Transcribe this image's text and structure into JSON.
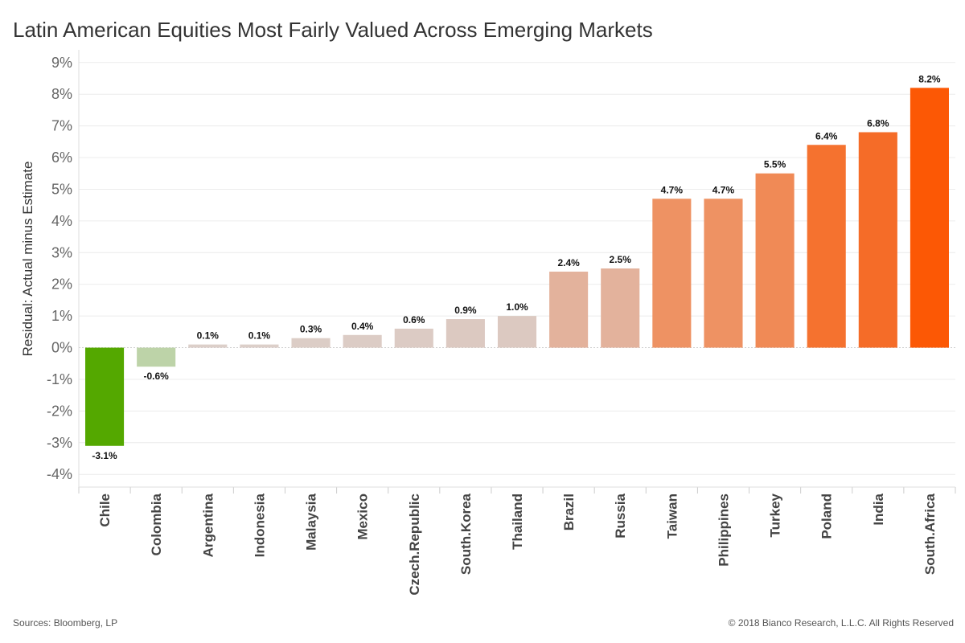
{
  "title": "Latin American Equities Most Fairly Valued Across Emerging Markets",
  "footer": {
    "source": "Sources: Bloomberg, LP",
    "copyright": "© 2018 Bianco Research, L.L.C. All Rights Reserved"
  },
  "chart_data": {
    "type": "bar",
    "ylabel": "Residual: Actual minus Estimate",
    "xlabel": "",
    "ylim": [
      -4.4,
      9.4
    ],
    "yticks": [
      9,
      8,
      7,
      6,
      5,
      4,
      3,
      2,
      1,
      0,
      -1,
      -2,
      -3,
      -4
    ],
    "ytick_labels": [
      "9%",
      "8%",
      "7%",
      "6%",
      "5%",
      "4%",
      "3%",
      "2%",
      "1%",
      "0%",
      "-1%",
      "-2%",
      "-3%",
      "-4%"
    ],
    "grid": true,
    "categories": [
      "Chile",
      "Colombia",
      "Argentina",
      "Indonesia",
      "Malaysia",
      "Mexico",
      "Czech.Republic",
      "South.Korea",
      "Thailand",
      "Brazil",
      "Russia",
      "Taiwan",
      "Philippines",
      "Turkey",
      "Poland",
      "India",
      "South.Africa"
    ],
    "values": [
      -3.1,
      -0.6,
      0.1,
      0.1,
      0.3,
      0.4,
      0.6,
      0.9,
      1.0,
      2.4,
      2.5,
      4.7,
      4.7,
      5.5,
      6.4,
      6.8,
      8.2
    ],
    "value_labels": [
      "-3.1%",
      "-0.6%",
      "0.1%",
      "0.1%",
      "0.3%",
      "0.4%",
      "0.6%",
      "0.9%",
      "1.0%",
      "2.4%",
      "2.5%",
      "4.7%",
      "4.7%",
      "5.5%",
      "6.4%",
      "6.8%",
      "8.2%"
    ],
    "colors": [
      "#54a800",
      "#bdd3a8",
      "#dccfc9",
      "#dccfc9",
      "#dccdc6",
      "#dcccc5",
      "#dccbc4",
      "#dcc9c1",
      "#dcc9c1",
      "#e3b29c",
      "#e3b29c",
      "#ee9263",
      "#ee9263",
      "#f08a56",
      "#f5722f",
      "#f56c28",
      "#fc5805"
    ]
  }
}
